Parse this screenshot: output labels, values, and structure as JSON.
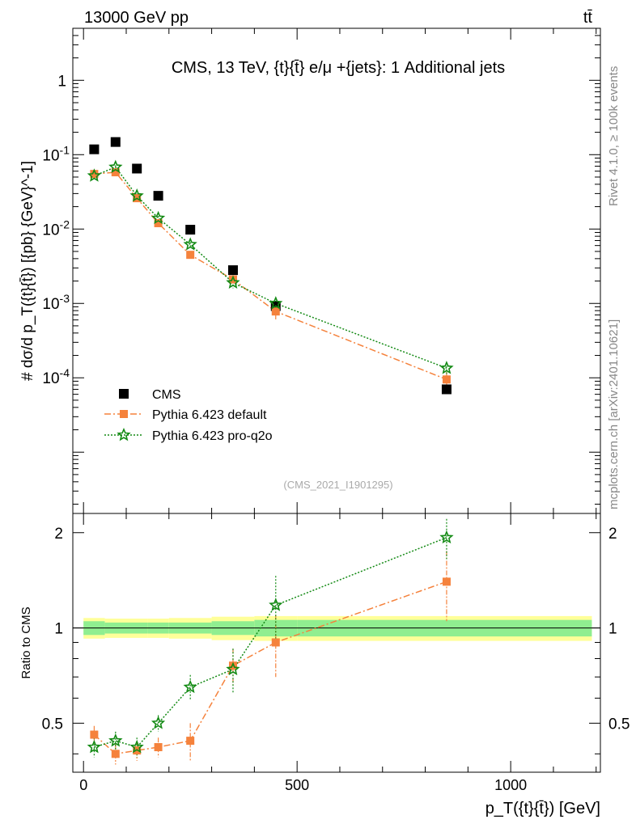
{
  "header": {
    "left": "13000 GeV pp",
    "right": "tt̄"
  },
  "side": {
    "top": "Rivet 4.1.0, ≥ 100k events",
    "bottom": "mcplots.cern.ch [arXiv:2401.10621]"
  },
  "chart_data": {
    "type": "scatter",
    "title": "CMS, 13 TeV, {t}{t̄} e/μ +{jets}: 1 Additional jets",
    "analysis_tag": "(CMS_2021_I1901295)",
    "xlabel": "p_T({t}{t̄}) [GeV]",
    "ylabel": "# dσ/d p_T({t}{t̄}) [{pb} {GeV}^-1]",
    "xlim": [
      -25,
      1210
    ],
    "ylim": [
      1.5e-06,
      5
    ],
    "yscale": "log",
    "x_ticks": [
      0,
      500,
      1000
    ],
    "x_tick_labels": [
      "0",
      "500",
      "1000"
    ],
    "y_ticks": [
      0.0001,
      0.001,
      0.01,
      0.1,
      1
    ],
    "y_tick_labels": [
      "10^-4",
      "10^-3",
      "10^-2",
      "10^-1",
      "1"
    ],
    "bins": [
      [
        0,
        50
      ],
      [
        50,
        100
      ],
      [
        100,
        150
      ],
      [
        150,
        200
      ],
      [
        200,
        300
      ],
      [
        300,
        400
      ],
      [
        400,
        500
      ],
      [
        500,
        1200
      ]
    ],
    "x": [
      25,
      75,
      125,
      175,
      250,
      350,
      450,
      850
    ],
    "series": [
      {
        "name": "CMS",
        "color": "#000000",
        "marker": "square",
        "values": [
          0.118,
          0.148,
          0.065,
          0.028,
          0.0098,
          0.0028,
          0.00092,
          7e-05
        ]
      },
      {
        "name": "Pythia 6.423 default",
        "color": "#f5823c",
        "marker": "square-small",
        "line": "dashdot",
        "values": [
          0.055,
          0.058,
          0.026,
          0.012,
          0.0045,
          0.0021,
          0.00078,
          9.5e-05
        ],
        "errors": [
          0.004,
          0.004,
          0.002,
          0.001,
          0.0004,
          0.0003,
          0.00017,
          2.5e-05
        ]
      },
      {
        "name": "Pythia 6.423 pro-q2o",
        "color": "#138a14",
        "marker": "star",
        "line": "dotted",
        "values": [
          0.052,
          0.068,
          0.028,
          0.014,
          0.0062,
          0.0019,
          0.001,
          0.000135
        ],
        "errors": [
          0.003,
          0.004,
          0.002,
          0.001,
          0.0005,
          0.0003,
          0.0002,
          2.5e-05
        ]
      }
    ],
    "ratio": {
      "ylabel": "Ratio to CMS",
      "ylim": [
        0.35,
        2.3
      ],
      "y_ticks": [
        0.5,
        1,
        2
      ],
      "y_tick_labels": [
        "0.5",
        "1",
        "2"
      ],
      "band_inner": [
        0.05,
        0.04,
        0.04,
        0.04,
        0.04,
        0.05,
        0.06,
        0.06
      ],
      "band_outer": [
        0.075,
        0.07,
        0.07,
        0.07,
        0.075,
        0.085,
        0.09,
        0.09
      ],
      "series": [
        {
          "name": "Pythia 6.423 default",
          "values": [
            0.46,
            0.4,
            0.41,
            0.42,
            0.44,
            0.76,
            0.9,
            1.4
          ],
          "errors": [
            0.03,
            0.03,
            0.03,
            0.03,
            0.06,
            0.1,
            0.2,
            0.35
          ]
        },
        {
          "name": "Pythia 6.423 pro-q2o",
          "values": [
            0.42,
            0.44,
            0.42,
            0.5,
            0.65,
            0.74,
            1.18,
            1.93
          ],
          "errors": [
            0.03,
            0.03,
            0.03,
            0.03,
            0.06,
            0.12,
            0.28,
            0.28
          ]
        }
      ]
    }
  }
}
